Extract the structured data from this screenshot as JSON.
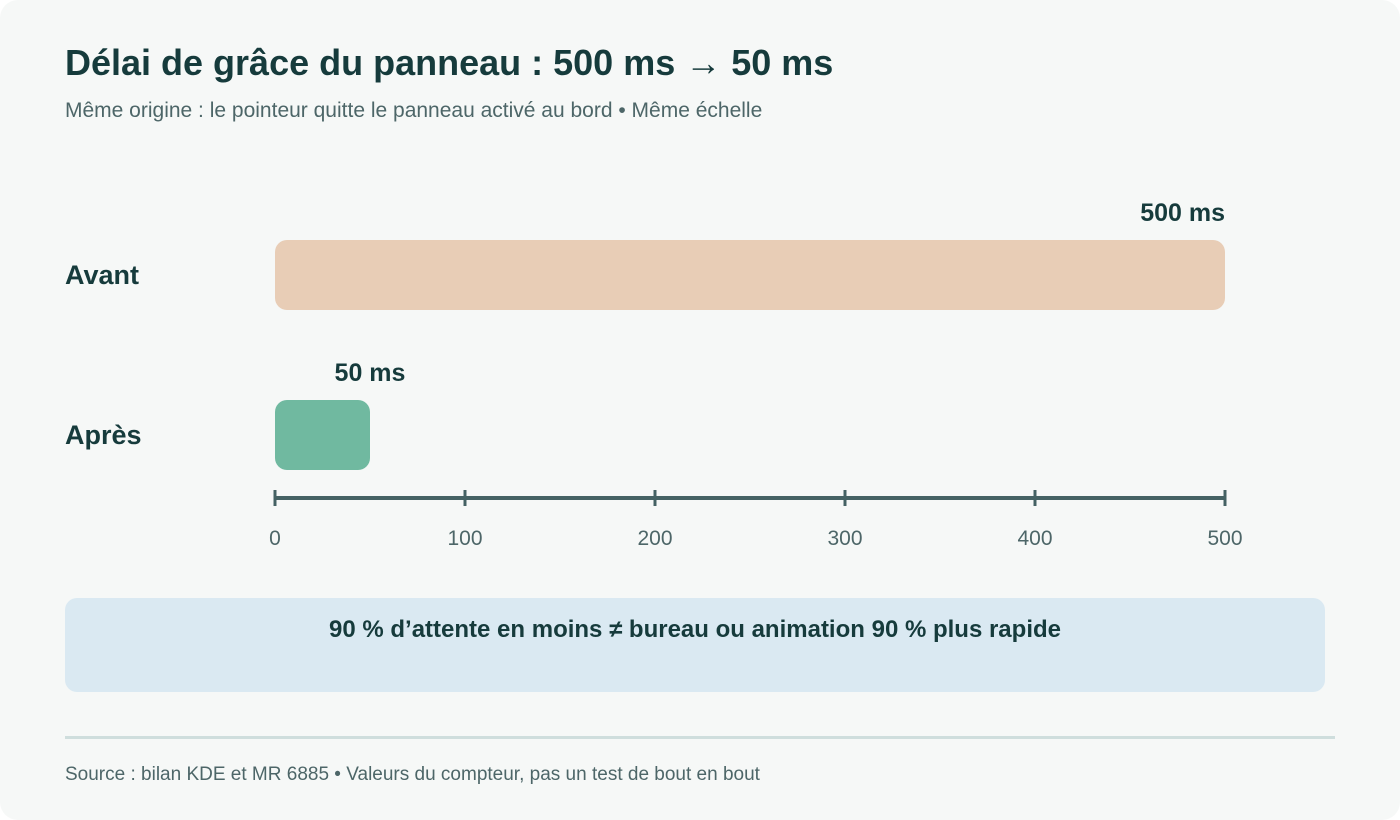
{
  "title": "Délai de grâce du panneau : 500 ms → 50 ms",
  "subtitle": "Même origine : le pointeur quitte le panneau activé au bord • Même échelle",
  "chart_data": {
    "type": "bar",
    "orientation": "horizontal",
    "categories": [
      "Avant",
      "Après"
    ],
    "values": [
      500,
      50
    ],
    "value_labels": [
      "500 ms",
      "50 ms"
    ],
    "colors": [
      "#e8cdb6",
      "#70b9a0"
    ],
    "xlim": [
      0,
      500
    ],
    "xticks": [
      0,
      100,
      200,
      300,
      400,
      500
    ],
    "xlabel": "",
    "ylabel": "",
    "grid": false
  },
  "callout": "90 % d’attente en moins ≠ bureau ou animation 90 % plus rapide",
  "source": "Source : bilan KDE et MR 6885 • Valeurs du compteur, pas un test de bout en bout"
}
